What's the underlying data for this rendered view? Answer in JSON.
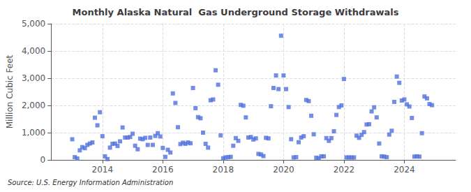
{
  "chart_data": {
    "type": "scatter",
    "title": "Monthly Alaska Natural  Gas Underground Storage Withdrawals",
    "ylabel": "Million Cubic Feet",
    "annotation": "Source: U.S. Energy Information Administration",
    "marker": "square",
    "grid": true,
    "xlim": [
      2012.3,
      2025.7
    ],
    "xticks": [
      2014,
      2016,
      2018,
      2020,
      2022,
      2024
    ],
    "ylim": [
      0,
      5000
    ],
    "yticks": [
      0,
      {
        "value": 1000,
        "label": "1,000"
      },
      {
        "value": 2000,
        "label": "2,000"
      },
      {
        "value": 3000,
        "label": "3,000"
      },
      {
        "value": 4000,
        "label": "4,000"
      },
      {
        "value": 5000,
        "label": "5,000"
      }
    ],
    "x": [
      2013.0,
      2013.083,
      2013.167,
      2013.25,
      2013.333,
      2013.417,
      2013.5,
      2013.583,
      2013.667,
      2013.75,
      2013.833,
      2013.917,
      2014.0,
      2014.083,
      2014.167,
      2014.25,
      2014.333,
      2014.417,
      2014.5,
      2014.583,
      2014.667,
      2014.75,
      2014.833,
      2014.917,
      2015.0,
      2015.083,
      2015.167,
      2015.25,
      2015.333,
      2015.417,
      2015.5,
      2015.583,
      2015.667,
      2015.75,
      2015.833,
      2015.917,
      2016.0,
      2016.083,
      2016.167,
      2016.25,
      2016.333,
      2016.417,
      2016.5,
      2016.583,
      2016.667,
      2016.75,
      2016.833,
      2016.917,
      2017.0,
      2017.083,
      2017.167,
      2017.25,
      2017.333,
      2017.417,
      2017.5,
      2017.583,
      2017.667,
      2017.75,
      2017.833,
      2017.917,
      2018.0,
      2018.083,
      2018.167,
      2018.25,
      2018.333,
      2018.417,
      2018.5,
      2018.583,
      2018.667,
      2018.75,
      2018.833,
      2018.917,
      2019.0,
      2019.083,
      2019.167,
      2019.25,
      2019.333,
      2019.417,
      2019.5,
      2019.583,
      2019.667,
      2019.75,
      2019.833,
      2019.917,
      2020.0,
      2020.083,
      2020.167,
      2020.25,
      2020.333,
      2020.417,
      2020.5,
      2020.583,
      2020.667,
      2020.75,
      2020.833,
      2020.917,
      2021.0,
      2021.083,
      2021.167,
      2021.25,
      2021.333,
      2021.417,
      2021.5,
      2021.583,
      2021.667,
      2021.75,
      2021.833,
      2021.917,
      2022.0,
      2022.083,
      2022.167,
      2022.25,
      2022.333,
      2022.417,
      2022.5,
      2022.583,
      2022.667,
      2022.75,
      2022.833,
      2022.917,
      2023.0,
      2023.083,
      2023.167,
      2023.25,
      2023.333,
      2023.417,
      2023.5,
      2023.583,
      2023.667,
      2023.75,
      2023.833,
      2023.917,
      2024.0,
      2024.083,
      2024.167,
      2024.25,
      2024.333,
      2024.417,
      2024.5,
      2024.583,
      2024.667,
      2024.75,
      2024.833,
      2024.917
    ],
    "values": [
      757,
      100,
      50,
      350,
      470,
      430,
      550,
      600,
      640,
      1550,
      1270,
      1750,
      870,
      130,
      30,
      450,
      590,
      600,
      510,
      680,
      1190,
      820,
      820,
      840,
      960,
      520,
      390,
      780,
      760,
      810,
      550,
      820,
      550,
      880,
      980,
      860,
      440,
      110,
      370,
      270,
      2440,
      2090,
      1200,
      580,
      630,
      590,
      640,
      610,
      2640,
      1900,
      1570,
      1530,
      1000,
      590,
      450,
      2190,
      2220,
      3290,
      2760,
      900,
      60,
      90,
      100,
      110,
      520,
      800,
      700,
      2020,
      1990,
      1560,
      820,
      840,
      750,
      790,
      220,
      200,
      140,
      810,
      790,
      1970,
      2640,
      3100,
      2600,
      4560,
      3100,
      2600,
      1940,
      760,
      90,
      100,
      650,
      820,
      870,
      2200,
      2160,
      1620,
      940,
      80,
      60,
      130,
      130,
      800,
      700,
      800,
      1050,
      1650,
      1940,
      2000,
      2970,
      90,
      90,
      90,
      90,
      890,
      810,
      920,
      1020,
      1300,
      1310,
      1780,
      1930,
      1560,
      600,
      130,
      120,
      100,
      930,
      1070,
      2130,
      3060,
      2830,
      2180,
      2220,
      2040,
      1960,
      1540,
      120,
      130,
      120,
      980,
      2330,
      2260,
      2050,
      2010
    ]
  }
}
